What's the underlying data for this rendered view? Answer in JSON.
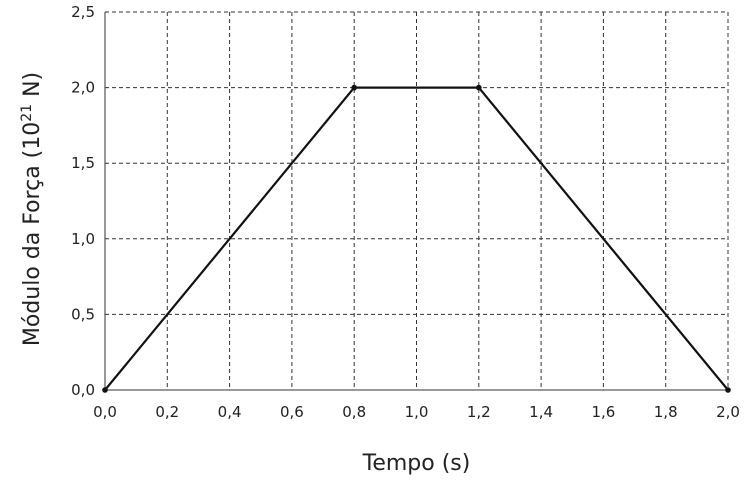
{
  "chart_data": {
    "type": "line",
    "title": "",
    "xlabel": "Tempo (s)",
    "ylabel": {
      "base": "Módulo da Força (10",
      "exponent": "21",
      "suffix": " N)"
    },
    "xlim": [
      0.0,
      2.0
    ],
    "ylim": [
      0.0,
      2.5
    ],
    "x_ticks": [
      "0,0",
      "0,2",
      "0,4",
      "0,6",
      "0,8",
      "1,0",
      "1,2",
      "1,4",
      "1,6",
      "1,8",
      "2,0"
    ],
    "y_ticks": [
      "0,0",
      "0,5",
      "1,0",
      "1,5",
      "2,0",
      "2,5"
    ],
    "grid": true,
    "legend": "none",
    "series": [
      {
        "x": [
          0.0,
          0.8,
          1.2,
          2.0
        ],
        "y": [
          0.0,
          2.0,
          2.0,
          0.0
        ],
        "color": "#111111"
      }
    ]
  }
}
